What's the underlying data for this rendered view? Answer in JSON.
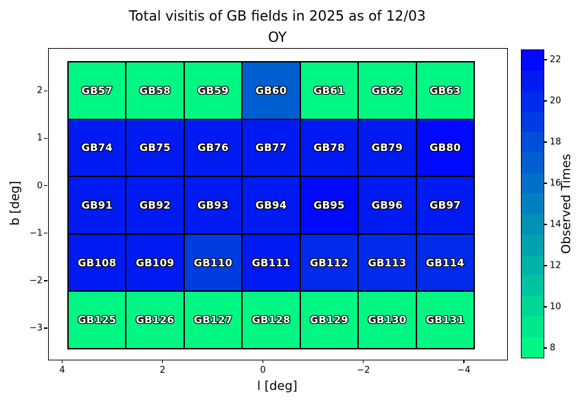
{
  "figure": {
    "title_line1": "Total visitis of GB fields in 2025 as of 12/03",
    "title_line2": "OY"
  },
  "chart_data": {
    "type": "heatmap",
    "title": "Total visitis of GB fields in 2025 as of 12/03 OY",
    "xlabel": "l [deg]",
    "ylabel": "b [deg]",
    "colorbar_label": "Observed Times",
    "colormap": "winter_r (green = low, blue = high)",
    "vmin": 7.5,
    "vmax": 22.5,
    "xlim": [
      4.28,
      -4.85
    ],
    "ylim": [
      2.9,
      -3.65
    ],
    "grid_rows": 5,
    "grid_cols": 7,
    "x_ticks": [
      {
        "value": 4,
        "label": "4"
      },
      {
        "value": 2,
        "label": "2"
      },
      {
        "value": 0,
        "label": "0"
      },
      {
        "value": -2,
        "label": "−2"
      },
      {
        "value": -4,
        "label": "−4"
      }
    ],
    "y_ticks": [
      {
        "value": 2,
        "label": "2"
      },
      {
        "value": 1,
        "label": "1"
      },
      {
        "value": 0,
        "label": "0"
      },
      {
        "value": -1,
        "label": "−1"
      },
      {
        "value": -2,
        "label": "−2"
      },
      {
        "value": -3,
        "label": "−3"
      }
    ],
    "colorbar_ticks": [
      {
        "value": 22,
        "label": "22"
      },
      {
        "value": 20,
        "label": "20"
      },
      {
        "value": 18,
        "label": "18"
      },
      {
        "value": 16,
        "label": "16"
      },
      {
        "value": 14,
        "label": "14"
      },
      {
        "value": 12,
        "label": "12"
      },
      {
        "value": 10,
        "label": "10"
      },
      {
        "value": 8,
        "label": "8"
      }
    ],
    "cells": [
      {
        "name": "GB57",
        "value": 8
      },
      {
        "name": "GB58",
        "value": 8
      },
      {
        "name": "GB59",
        "value": 8
      },
      {
        "name": "GB60",
        "value": 17
      },
      {
        "name": "GB61",
        "value": 8
      },
      {
        "name": "GB62",
        "value": 8
      },
      {
        "name": "GB63",
        "value": 8
      },
      {
        "name": "GB74",
        "value": 21
      },
      {
        "name": "GB75",
        "value": 21
      },
      {
        "name": "GB76",
        "value": 21
      },
      {
        "name": "GB77",
        "value": 21
      },
      {
        "name": "GB78",
        "value": 21
      },
      {
        "name": "GB79",
        "value": 21
      },
      {
        "name": "GB80",
        "value": 22
      },
      {
        "name": "GB91",
        "value": 21
      },
      {
        "name": "GB92",
        "value": 21
      },
      {
        "name": "GB93",
        "value": 21
      },
      {
        "name": "GB94",
        "value": 21
      },
      {
        "name": "GB95",
        "value": 22
      },
      {
        "name": "GB96",
        "value": 21
      },
      {
        "name": "GB97",
        "value": 21
      },
      {
        "name": "GB108",
        "value": 21
      },
      {
        "name": "GB109",
        "value": 21
      },
      {
        "name": "GB110",
        "value": 19
      },
      {
        "name": "GB111",
        "value": 21
      },
      {
        "name": "GB112",
        "value": 20
      },
      {
        "name": "GB113",
        "value": 20
      },
      {
        "name": "GB114",
        "value": 20
      },
      {
        "name": "GB125",
        "value": 8
      },
      {
        "name": "GB126",
        "value": 8
      },
      {
        "name": "GB127",
        "value": 8
      },
      {
        "name": "GB128",
        "value": 8
      },
      {
        "name": "GB129",
        "value": 8
      },
      {
        "name": "GB130",
        "value": 8
      },
      {
        "name": "GB131",
        "value": 8
      }
    ]
  }
}
